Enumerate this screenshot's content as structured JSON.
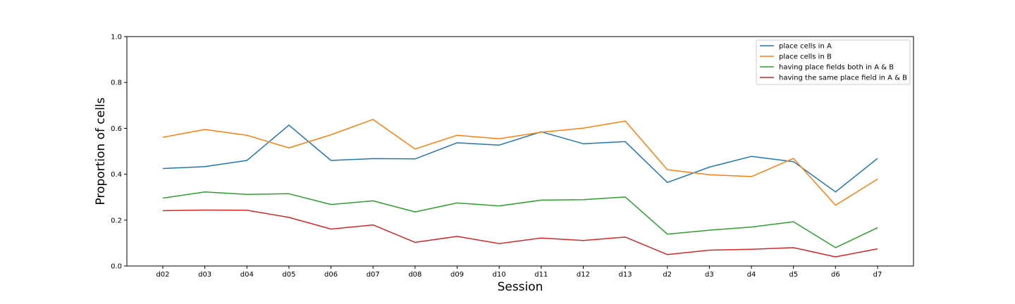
{
  "chart_data": {
    "type": "line",
    "title": "",
    "xlabel": "Session",
    "ylabel": "Proportion of cells",
    "ylim": [
      0,
      1.0
    ],
    "yticks": [
      "0.0",
      "0.2",
      "0.4",
      "0.6",
      "0.8",
      "1.0"
    ],
    "categories": [
      "d02",
      "d03",
      "d04",
      "d05",
      "d06",
      "d07",
      "d08",
      "d09",
      "d10",
      "d11",
      "d12",
      "d13",
      "d2",
      "d3",
      "d4",
      "d5",
      "d6",
      "d7"
    ],
    "grid": false,
    "legend_position": "top-right",
    "series": [
      {
        "name": "place cells in A",
        "color": "#1f77b4",
        "values": [
          0.425,
          0.433,
          0.46,
          0.614,
          0.46,
          0.468,
          0.467,
          0.537,
          0.527,
          0.585,
          0.533,
          0.542,
          0.364,
          0.431,
          0.478,
          0.455,
          0.323,
          0.469
        ]
      },
      {
        "name": "place cells in B",
        "color": "#ff7f0e",
        "values": [
          0.561,
          0.595,
          0.57,
          0.515,
          0.572,
          0.639,
          0.51,
          0.57,
          0.555,
          0.583,
          0.601,
          0.632,
          0.42,
          0.398,
          0.39,
          0.469,
          0.265,
          0.379
        ]
      },
      {
        "name": "having place fields both in A & B",
        "color": "#2ca02c",
        "values": [
          0.296,
          0.323,
          0.312,
          0.315,
          0.268,
          0.284,
          0.236,
          0.275,
          0.262,
          0.287,
          0.289,
          0.301,
          0.139,
          0.156,
          0.17,
          0.193,
          0.08,
          0.167
        ]
      },
      {
        "name": "having the same place field in A & B",
        "color": "#d62728",
        "values": [
          0.241,
          0.244,
          0.243,
          0.212,
          0.161,
          0.179,
          0.103,
          0.129,
          0.098,
          0.122,
          0.111,
          0.126,
          0.05,
          0.069,
          0.073,
          0.08,
          0.04,
          0.075
        ]
      }
    ]
  }
}
